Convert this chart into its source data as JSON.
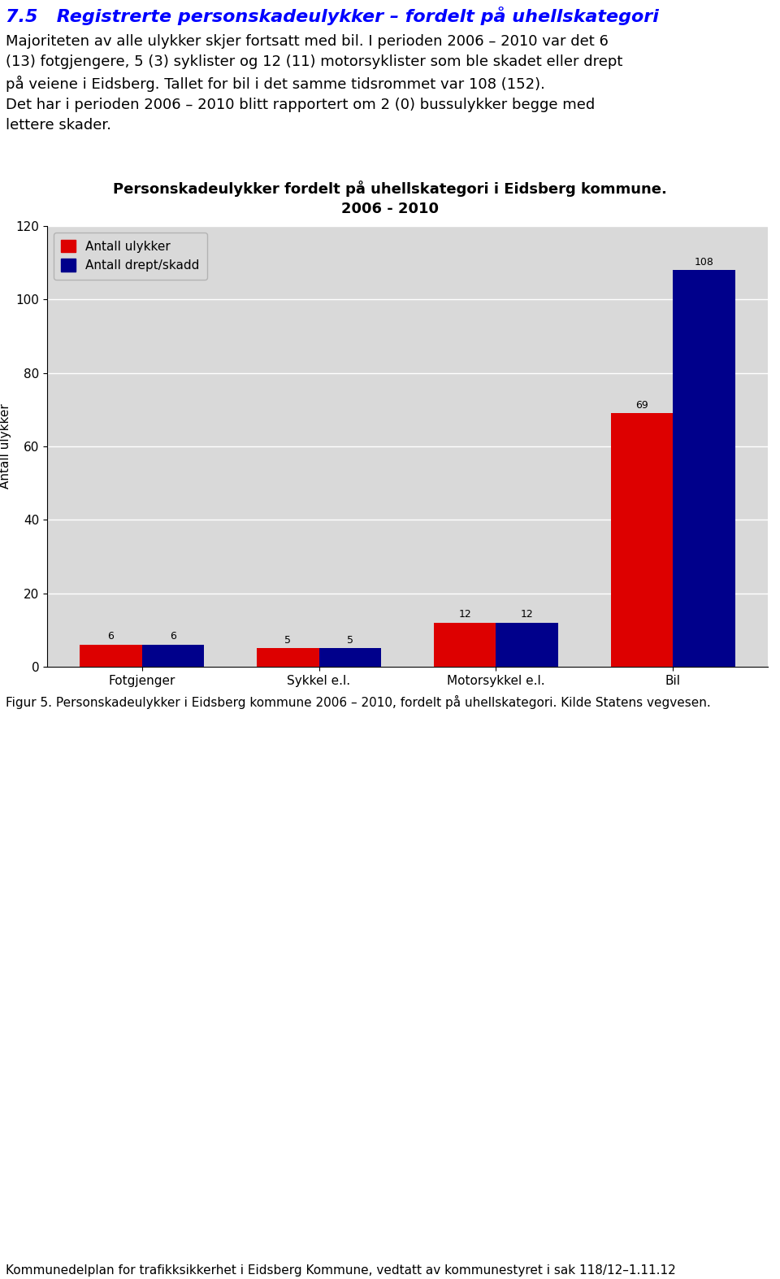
{
  "page_bg": "#ffffff",
  "title_text": "7.5   Registrerte personskadeulykker – fordelt på uhellskategori",
  "title_color": "#0000ff",
  "title_fontsize": 16,
  "body_text1": "Majoriteten av alle ulykker skjer fortsatt med bil. I perioden 2006 – 2010 var det 6\n(13) fotgjengere, 5 (3) syklister og 12 (11) motorsyklister som ble skadet eller drept\npå veiene i Eidsberg. Tallet for bil i det samme tidsrommet var 108 (152).\nDet har i perioden 2006 – 2010 blitt rapportert om 2 (0) bussulykker begge med\nlettere skader.",
  "body_fontsize": 13,
  "chart_title_line1": "Personskadeulykker fordelt på uhellskategori i Eidsberg kommune.",
  "chart_title_line2": "2006 - 2010",
  "chart_title_fontsize": 13,
  "categories": [
    "Fotgjenger",
    "Sykkel e.l.",
    "Motorsykkel e.l.",
    "Bil"
  ],
  "series1_label": "Antall ulykker",
  "series1_color": "#dd0000",
  "series1_values": [
    6,
    5,
    12,
    69
  ],
  "series2_label": "Antall drept/skadd",
  "series2_color": "#00008b",
  "series2_values": [
    6,
    5,
    12,
    108
  ],
  "ylabel": "Antall ulykker",
  "ylim": [
    0,
    120
  ],
  "yticks": [
    0,
    20,
    40,
    60,
    80,
    100,
    120
  ],
  "bar_width": 0.35,
  "chart_bg": "#d9d9d9",
  "grid_color": "#ffffff",
  "legend_fontsize": 11,
  "axis_fontsize": 11,
  "tick_fontsize": 11,
  "value_label_fontsize": 9,
  "figcaption": "Figur 5. Personskadeulykker i Eidsberg kommune 2006 – 2010, fordelt på uhellskategori. Kilde Statens vegvesen.",
  "figcaption_fontsize": 11,
  "footer_text": "Kommunedelplan for trafikksikkerhet i Eidsberg Kommune, vedtatt av kommunestyret i sak 118/12–1.11.12",
  "footer_fontsize": 11
}
